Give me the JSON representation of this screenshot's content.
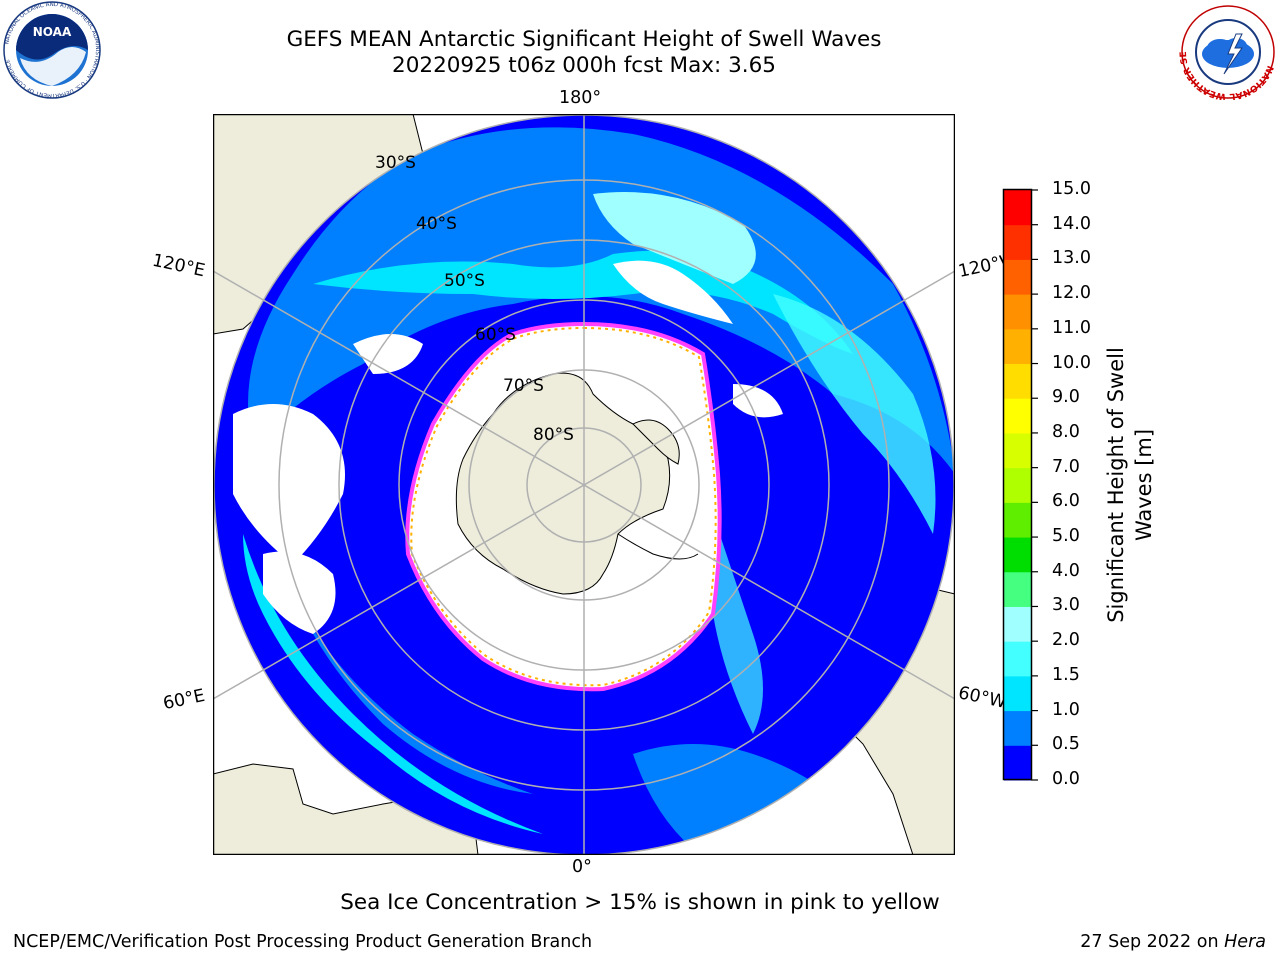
{
  "title": {
    "line1": "GEFS MEAN Antarctic Significant Height of Swell Waves",
    "line2": "20220925 t06z 000h fcst   Max: 3.65"
  },
  "logos": {
    "left": "noaa-logo",
    "right": "nws-logo",
    "left_text": "NOAA",
    "left_ring": "NATIONAL OCEANIC AND ATMOSPHERIC ADMINISTRATION · U.S. DEPARTMENT OF COMMERCE",
    "right_ring": "NATIONAL WEATHER SERVICE"
  },
  "map": {
    "projection": "south-polar-stereographic",
    "lon_labels": {
      "top": "180°",
      "bottom": "0°",
      "upper_left": "120°E",
      "upper_right": "120°W",
      "lower_left": "60°E",
      "lower_right": "60°W"
    },
    "lat_labels": [
      "30°S",
      "40°S",
      "50°S",
      "60°S",
      "70°S",
      "80°S"
    ],
    "colors": {
      "land": "#eeeddc",
      "ocean_low": "#0000ff",
      "ocean_mid": "#0080ff",
      "ocean_high": "#00e5ff",
      "ice_edge": "#ff40ff",
      "ice_inner": "#ffb000",
      "grid": "#b0b0b0"
    }
  },
  "colorbar": {
    "label_line1": "Significant Height of Swell",
    "label_line2": "Waves [m]",
    "ticks": [
      "0.0",
      "0.5",
      "1.0",
      "1.5",
      "2.0",
      "3.0",
      "4.0",
      "5.0",
      "6.0",
      "7.0",
      "8.0",
      "9.0",
      "10.0",
      "11.0",
      "12.0",
      "13.0",
      "14.0",
      "15.0"
    ],
    "colors": [
      "#0000ff",
      "#0080ff",
      "#00e5ff",
      "#44ffff",
      "#a0ffff",
      "#44ff80",
      "#00dd00",
      "#60ee00",
      "#b0ff00",
      "#d8ff00",
      "#ffff00",
      "#ffdd00",
      "#ffb000",
      "#ff9000",
      "#ff6000",
      "#ff3000",
      "#ff0000"
    ]
  },
  "notes": {
    "ice": "Sea Ice Concentration > 15% is shown in pink to yellow",
    "footer_left": "NCEP/EMC/Verification Post Processing Product Generation Branch",
    "footer_date": "27 Sep 2022 on",
    "footer_host": "Hera"
  }
}
